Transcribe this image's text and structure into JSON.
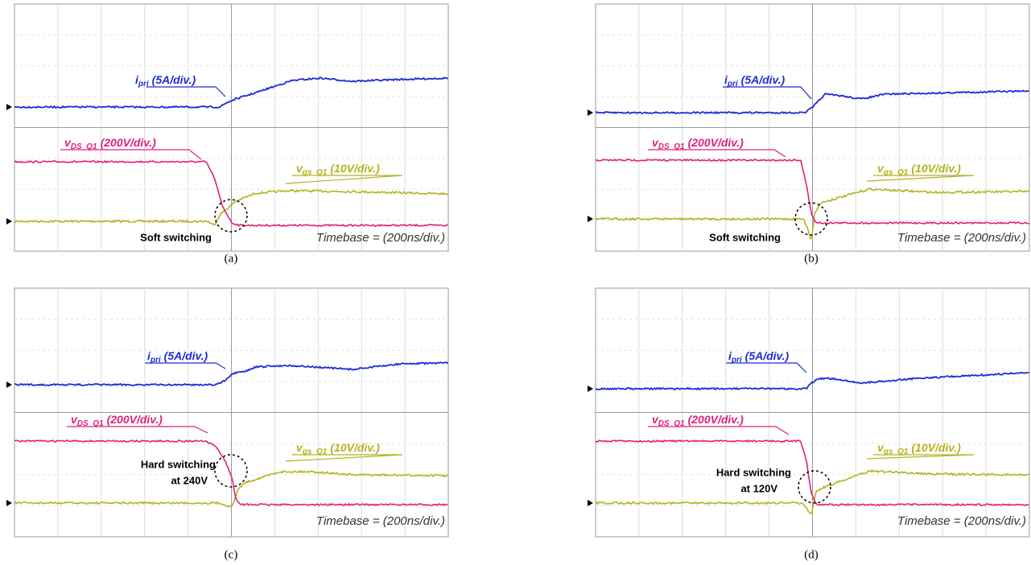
{
  "panels": [
    {
      "caption": "(a)",
      "traces": {
        "i_pri": {
          "symbol": "i",
          "subscript": "pri",
          "scale": "(5A/div.)"
        },
        "v_ds": {
          "symbol": "v",
          "subscript": "DS_Q1",
          "scale": "(200V/div.)"
        },
        "v_gs": {
          "symbol": "v",
          "subscript": "gs_Q1",
          "scale": "(10V/div.)"
        }
      },
      "annotation": [
        "Soft switching"
      ],
      "timebase": "Timebase = (200ns/div.)"
    },
    {
      "caption": "(b)",
      "traces": {
        "i_pri": {
          "symbol": "i",
          "subscript": "pri",
          "scale": "(5A/div.)"
        },
        "v_ds": {
          "symbol": "v",
          "subscript": "DS_Q1",
          "scale": "(200V/div.)"
        },
        "v_gs": {
          "symbol": "v",
          "subscript": "gs_Q1",
          "scale": "(10V/div.)"
        }
      },
      "annotation": [
        "Soft switching"
      ],
      "timebase": "Timebase = (200ns/div.)"
    },
    {
      "caption": "(c)",
      "traces": {
        "i_pri": {
          "symbol": "i",
          "subscript": "pri",
          "scale": "(5A/div.)"
        },
        "v_ds": {
          "symbol": "v",
          "subscript": "DS_Q1",
          "scale": "(200V/div.)"
        },
        "v_gs": {
          "symbol": "v",
          "subscript": "gs_Q1",
          "scale": "(10V/div.)"
        }
      },
      "annotation": [
        "Hard switching",
        "at 240V"
      ],
      "timebase": "Timebase = (200ns/div.)"
    },
    {
      "caption": "(d)",
      "traces": {
        "i_pri": {
          "symbol": "i",
          "subscript": "pri",
          "scale": "(5A/div.)"
        },
        "v_ds": {
          "symbol": "v",
          "subscript": "DS_Q1",
          "scale": "(200V/div.)"
        },
        "v_gs": {
          "symbol": "v",
          "subscript": "gs_Q1",
          "scale": "(10V/div.)"
        }
      },
      "annotation": [
        "Hard switching",
        "at 120V"
      ],
      "timebase": "Timebase = (200ns/div.)"
    }
  ]
}
